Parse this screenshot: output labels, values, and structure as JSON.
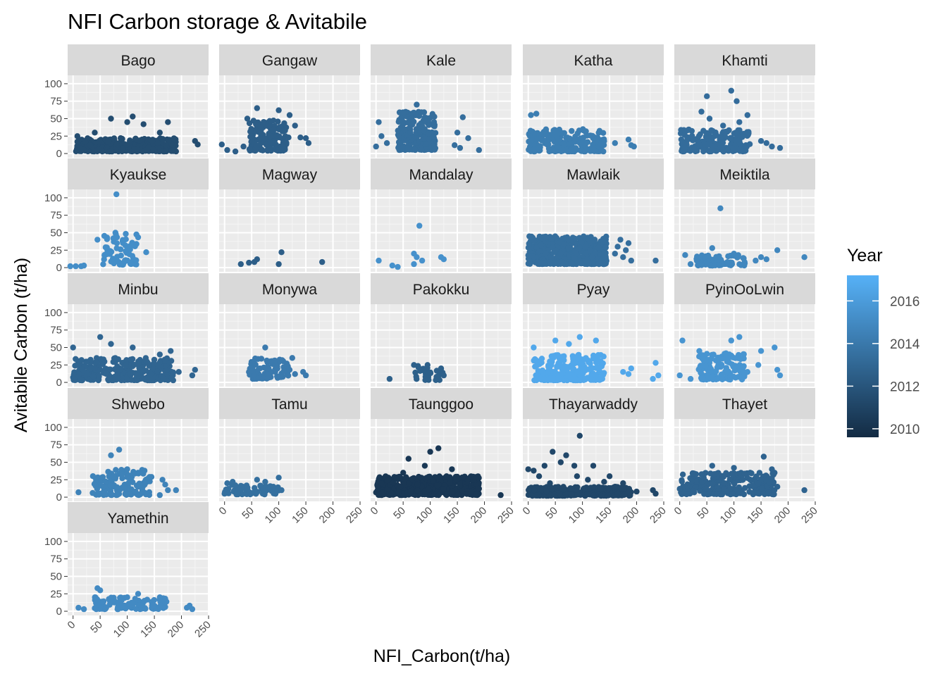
{
  "chart_data": {
    "type": "scatter",
    "title": "NFI Carbon storage & Avitabile",
    "xlabel": "NFI_Carbon(t/ha)",
    "ylabel": "Avitabile Carbon (t/ha)",
    "xlim": [
      -10,
      250
    ],
    "ylim": [
      -6,
      112
    ],
    "x_ticks": [
      0,
      50,
      100,
      150,
      200,
      250
    ],
    "y_ticks": [
      0,
      25,
      50,
      75,
      100
    ],
    "grid": true,
    "facet_by": "district",
    "color_scale": {
      "title": "Year",
      "min": 2009.6,
      "max": 2017.2,
      "low_color": "#132B43",
      "high_color": "#56B1F7",
      "breaks": [
        2010,
        2012,
        2014,
        2016
      ]
    },
    "facets": [
      {
        "name": "Bago",
        "year": 2011.5,
        "cloud": [
          5,
          190,
          3,
          22,
          320
        ],
        "points": [
          [
            225,
            18
          ],
          [
            230,
            13
          ],
          [
            70,
            50
          ],
          [
            110,
            53
          ],
          [
            175,
            45
          ],
          [
            8,
            25
          ],
          [
            40,
            30
          ],
          [
            130,
            42
          ],
          [
            160,
            30
          ],
          [
            185,
            5
          ],
          [
            20,
            5
          ],
          [
            100,
            45
          ]
        ]
      },
      {
        "name": "Gangaw",
        "year": 2012.5,
        "cloud": [
          45,
          115,
          4,
          48,
          140
        ],
        "points": [
          [
            -5,
            13
          ],
          [
            5,
            5
          ],
          [
            20,
            3
          ],
          [
            150,
            22
          ],
          [
            155,
            15
          ],
          [
            118,
            23
          ],
          [
            120,
            55
          ],
          [
            130,
            40
          ],
          [
            42,
            50
          ],
          [
            60,
            65
          ],
          [
            100,
            62
          ],
          [
            35,
            10
          ],
          [
            140,
            23
          ]
        ]
      },
      {
        "name": "Kale",
        "year": 2013.4,
        "cloud": [
          40,
          110,
          5,
          60,
          200
        ],
        "points": [
          [
            5,
            45
          ],
          [
            0,
            10
          ],
          [
            160,
            52
          ],
          [
            190,
            5
          ],
          [
            150,
            30
          ],
          [
            145,
            12
          ],
          [
            20,
            15
          ],
          [
            75,
            70
          ],
          [
            10,
            25
          ],
          [
            170,
            22
          ],
          [
            155,
            8
          ]
        ]
      },
      {
        "name": "Katha",
        "year": 2014.3,
        "cloud": [
          0,
          140,
          3,
          35,
          220
        ],
        "points": [
          [
            5,
            55
          ],
          [
            185,
            20
          ],
          [
            190,
            12
          ],
          [
            195,
            10
          ],
          [
            160,
            15
          ],
          [
            140,
            18
          ],
          [
            15,
            57
          ]
        ]
      },
      {
        "name": "Khamti",
        "year": 2013.3,
        "cloud": [
          0,
          130,
          3,
          35,
          180
        ],
        "points": [
          [
            50,
            82
          ],
          [
            95,
            90
          ],
          [
            105,
            75
          ],
          [
            55,
            50
          ],
          [
            125,
            55
          ],
          [
            185,
            8
          ],
          [
            160,
            15
          ],
          [
            170,
            10
          ],
          [
            150,
            18
          ],
          [
            40,
            60
          ],
          [
            80,
            40
          ],
          [
            110,
            45
          ]
        ]
      },
      {
        "name": "Kyaukse",
        "year": 2015.2,
        "cloud": [
          55,
          120,
          4,
          50,
          70
        ],
        "points": [
          [
            80,
            105
          ],
          [
            -5,
            2
          ],
          [
            5,
            2
          ],
          [
            15,
            2
          ],
          [
            45,
            40
          ],
          [
            135,
            22
          ],
          [
            20,
            3
          ]
        ]
      },
      {
        "name": "Magway",
        "year": 2012.5,
        "cloud": null,
        "points": [
          [
            30,
            5
          ],
          [
            45,
            7
          ],
          [
            55,
            8
          ],
          [
            60,
            12
          ],
          [
            105,
            22
          ],
          [
            100,
            5
          ],
          [
            180,
            8
          ]
        ]
      },
      {
        "name": "Mandalay",
        "year": 2015.4,
        "cloud": null,
        "points": [
          [
            5,
            10
          ],
          [
            30,
            3
          ],
          [
            40,
            1
          ],
          [
            70,
            20
          ],
          [
            75,
            15
          ],
          [
            80,
            60
          ],
          [
            85,
            10
          ],
          [
            120,
            15
          ],
          [
            125,
            12
          ],
          [
            70,
            5
          ]
        ]
      },
      {
        "name": "Mawlaik",
        "year": 2013.4,
        "cloud": [
          0,
          145,
          5,
          45,
          450
        ],
        "points": [
          [
            165,
            30
          ],
          [
            180,
            25
          ],
          [
            170,
            40
          ],
          [
            190,
            10
          ],
          [
            235,
            10
          ],
          [
            160,
            20
          ],
          [
            185,
            35
          ],
          [
            175,
            15
          ]
        ]
      },
      {
        "name": "Meiktila",
        "year": 2014.8,
        "cloud": [
          30,
          120,
          3,
          18,
          70
        ],
        "points": [
          [
            75,
            85
          ],
          [
            10,
            18
          ],
          [
            20,
            5
          ],
          [
            230,
            15
          ],
          [
            180,
            25
          ],
          [
            150,
            15
          ],
          [
            160,
            12
          ],
          [
            140,
            10
          ],
          [
            100,
            20
          ],
          [
            60,
            28
          ],
          [
            120,
            6
          ]
        ]
      },
      {
        "name": "Minbu",
        "year": 2012.9,
        "cloud": [
          0,
          185,
          3,
          35,
          300
        ],
        "points": [
          [
            50,
            65
          ],
          [
            0,
            50
          ],
          [
            180,
            45
          ],
          [
            220,
            10
          ],
          [
            225,
            18
          ],
          [
            195,
            15
          ],
          [
            110,
            50
          ],
          [
            160,
            40
          ],
          [
            70,
            55
          ]
        ]
      },
      {
        "name": "Monywa",
        "year": 2014.1,
        "cloud": [
          45,
          120,
          5,
          35,
          80
        ],
        "points": [
          [
            75,
            50
          ],
          [
            150,
            10
          ],
          [
            145,
            15
          ],
          [
            130,
            12
          ],
          [
            120,
            18
          ],
          [
            125,
            35
          ],
          [
            45,
            15
          ]
        ]
      },
      {
        "name": "Pakokku",
        "year": 2012.6,
        "cloud": [
          70,
          125,
          3,
          25,
          25
        ],
        "points": [
          [
            25,
            5
          ],
          [
            70,
            25
          ],
          [
            95,
            25
          ],
          [
            120,
            20
          ],
          [
            125,
            10
          ]
        ]
      },
      {
        "name": "Pyay",
        "year": 2016.7,
        "cloud": [
          10,
          140,
          3,
          40,
          260
        ],
        "points": [
          [
            95,
            65
          ],
          [
            125,
            60
          ],
          [
            235,
            28
          ],
          [
            240,
            10
          ],
          [
            230,
            5
          ],
          [
            185,
            12
          ],
          [
            190,
            20
          ],
          [
            175,
            15
          ],
          [
            10,
            50
          ],
          [
            50,
            60
          ],
          [
            75,
            55
          ]
        ]
      },
      {
        "name": "PyinOoLwin",
        "year": 2015.6,
        "cloud": [
          35,
          120,
          4,
          45,
          130
        ],
        "points": [
          [
            5,
            60
          ],
          [
            175,
            50
          ],
          [
            180,
            18
          ],
          [
            185,
            10
          ],
          [
            145,
            25
          ],
          [
            150,
            45
          ],
          [
            110,
            65
          ],
          [
            95,
            60
          ],
          [
            125,
            15
          ],
          [
            0,
            10
          ],
          [
            20,
            5
          ]
        ]
      },
      {
        "name": "Shwebo",
        "year": 2014.6,
        "cloud": [
          35,
          145,
          3,
          40,
          130
        ],
        "points": [
          [
            85,
            68
          ],
          [
            70,
            60
          ],
          [
            10,
            7
          ],
          [
            165,
            25
          ],
          [
            170,
            18
          ],
          [
            175,
            10
          ],
          [
            160,
            3
          ],
          [
            190,
            10
          ],
          [
            120,
            35
          ],
          [
            100,
            40
          ]
        ]
      },
      {
        "name": "Tamu",
        "year": 2013.5,
        "cloud": [
          0,
          100,
          4,
          18,
          60
        ],
        "points": [
          [
            5,
            20
          ],
          [
            15,
            22
          ],
          [
            100,
            28
          ],
          [
            105,
            10
          ],
          [
            60,
            25
          ],
          [
            75,
            22
          ],
          [
            90,
            15
          ],
          [
            0,
            5
          ]
        ]
      },
      {
        "name": "Taunggoo",
        "year": 2010.3,
        "cloud": [
          0,
          190,
          3,
          30,
          500
        ],
        "points": [
          [
            230,
            3
          ],
          [
            115,
            70
          ],
          [
            100,
            65
          ],
          [
            60,
            55
          ],
          [
            140,
            40
          ],
          [
            180,
            25
          ],
          [
            10,
            20
          ],
          [
            185,
            5
          ],
          [
            90,
            45
          ],
          [
            130,
            30
          ],
          [
            50,
            35
          ]
        ]
      },
      {
        "name": "Thayarwaddy",
        "year": 2011.2,
        "cloud": [
          0,
          190,
          2,
          15,
          300
        ],
        "points": [
          [
            95,
            88
          ],
          [
            45,
            65
          ],
          [
            70,
            60
          ],
          [
            0,
            40
          ],
          [
            10,
            38
          ],
          [
            30,
            45
          ],
          [
            60,
            50
          ],
          [
            85,
            45
          ],
          [
            120,
            45
          ],
          [
            150,
            30
          ],
          [
            175,
            20
          ],
          [
            230,
            10
          ],
          [
            235,
            5
          ],
          [
            200,
            8
          ],
          [
            90,
            30
          ],
          [
            110,
            25
          ],
          [
            140,
            22
          ],
          [
            40,
            20
          ],
          [
            20,
            30
          ],
          [
            160,
            15
          ]
        ]
      },
      {
        "name": "Thayet",
        "year": 2012.8,
        "cloud": [
          0,
          175,
          4,
          35,
          250
        ],
        "points": [
          [
            155,
            58
          ],
          [
            230,
            10
          ],
          [
            175,
            35
          ],
          [
            170,
            40
          ],
          [
            60,
            45
          ],
          [
            100,
            42
          ],
          [
            130,
            35
          ],
          [
            180,
            15
          ],
          [
            0,
            12
          ]
        ]
      },
      {
        "name": "Yamethin",
        "year": 2015.0,
        "cloud": [
          40,
          175,
          3,
          20,
          110
        ],
        "points": [
          [
            45,
            33
          ],
          [
            50,
            30
          ],
          [
            120,
            25
          ],
          [
            10,
            5
          ],
          [
            20,
            3
          ],
          [
            210,
            5
          ],
          [
            215,
            8
          ],
          [
            220,
            3
          ],
          [
            150,
            8
          ],
          [
            160,
            20
          ],
          [
            170,
            18
          ],
          [
            100,
            20
          ]
        ]
      }
    ]
  }
}
